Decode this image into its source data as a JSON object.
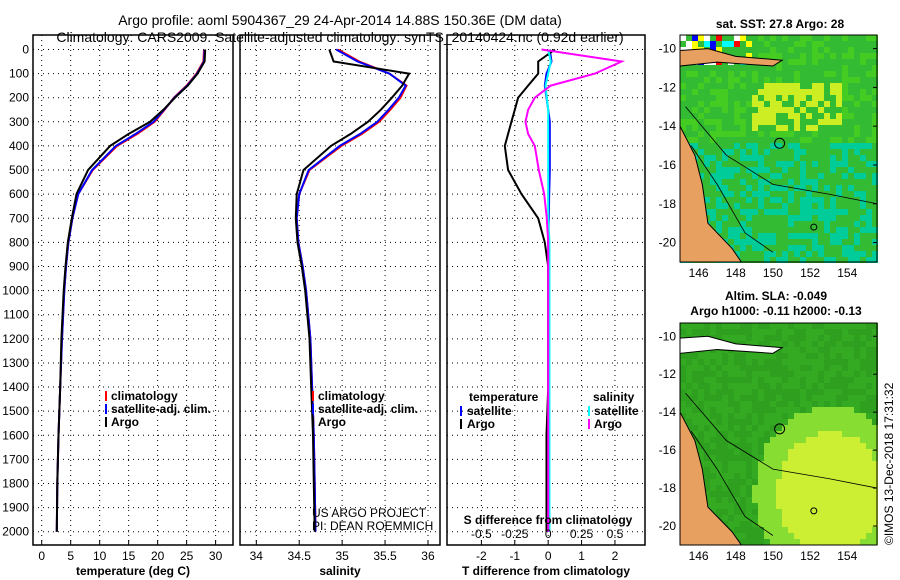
{
  "title_line1": "Argo profile: aoml 5904367_29 24-Apr-2014 14.88S 150.36E (DM data)",
  "title_line2": "Climatology: CARS2009. Satellite-adjusted climatology: synTS_20140424.nc (0.92d earlier)",
  "credit_line1": "US ARGO PROJECT",
  "credit_line2": "PI: DEAN ROEMMICH",
  "map1_title": "sat. SST: 27.8 Argo: 28",
  "map2_title1": "Altim. SLA: -0.049",
  "map2_title2": "Argo h1000: -0.11 h2000: -0.13",
  "copyright": "©IMOS 13-Dec-2018 17:31:32",
  "colors": {
    "climatology": "#ff0000",
    "satellite": "#0000ff",
    "argo": "#000000",
    "sal_sat": "#00ffff",
    "sal_argo": "#ff00ff"
  },
  "chart_data": [
    {
      "type": "line",
      "xlabel": "temperature (deg C)",
      "ylabel": "depth",
      "xlim": [
        -1.5,
        33
      ],
      "ylim": [
        2055,
        -60
      ],
      "xticks": [
        0,
        5,
        10,
        15,
        20,
        25,
        30
      ],
      "yticks": [
        0,
        100,
        200,
        300,
        400,
        500,
        600,
        700,
        800,
        900,
        1000,
        1100,
        1200,
        1300,
        1400,
        1500,
        1600,
        1700,
        1800,
        1900,
        2000
      ],
      "depth": [
        0,
        50,
        100,
        150,
        200,
        250,
        300,
        350,
        400,
        500,
        600,
        700,
        800,
        900,
        1000,
        1200,
        1400,
        1600,
        1800,
        2000
      ],
      "series": [
        {
          "name": "climatology",
          "color": "#ff0000",
          "values": [
            28.0,
            27.9,
            26.7,
            25.0,
            22.8,
            21.2,
            19.5,
            16.5,
            13.0,
            8.8,
            6.3,
            5.3,
            4.6,
            4.2,
            3.9,
            3.5,
            3.2,
            2.9,
            2.7,
            2.6
          ]
        },
        {
          "name": "satellite-adj. clim.",
          "color": "#0000ff",
          "values": [
            28.1,
            28.0,
            26.8,
            25.1,
            22.9,
            21.1,
            19.3,
            16.2,
            12.8,
            8.7,
            6.3,
            5.3,
            4.6,
            4.2,
            3.9,
            3.5,
            3.2,
            2.9,
            2.7,
            2.6
          ]
        },
        {
          "name": "Argo",
          "color": "#000000",
          "values": [
            28.2,
            28.1,
            26.9,
            25.2,
            23.0,
            21.0,
            18.7,
            15.0,
            11.8,
            8.0,
            6.0,
            5.2,
            4.5,
            4.1,
            3.8,
            3.4,
            3.2,
            2.9,
            2.7,
            2.6
          ]
        }
      ],
      "legend": [
        "climatology",
        "satellite-adj. clim.",
        "Argo"
      ],
      "legend_position": "bottom-right"
    },
    {
      "type": "line",
      "xlabel": "salinity",
      "xlim": [
        33.81,
        36.14
      ],
      "ylim": [
        2055,
        -60
      ],
      "xticks": [
        34,
        34.5,
        35,
        35.5,
        36
      ],
      "depth": [
        0,
        50,
        100,
        150,
        200,
        250,
        300,
        350,
        400,
        500,
        600,
        700,
        800,
        900,
        1000,
        1200,
        1400,
        1600,
        1800,
        2000
      ],
      "series": [
        {
          "name": "climatology",
          "color": "#ff0000",
          "values": [
            34.95,
            35.2,
            35.55,
            35.75,
            35.68,
            35.56,
            35.43,
            35.23,
            34.99,
            34.62,
            34.5,
            34.47,
            34.49,
            34.54,
            34.58,
            34.63,
            34.65,
            34.67,
            34.68,
            34.69
          ]
        },
        {
          "name": "satellite-adj. clim.",
          "color": "#0000ff",
          "values": [
            34.93,
            35.18,
            35.55,
            35.74,
            35.66,
            35.54,
            35.41,
            35.21,
            34.97,
            34.61,
            34.5,
            34.47,
            34.49,
            34.54,
            34.58,
            34.63,
            34.65,
            34.67,
            34.68,
            34.69
          ]
        },
        {
          "name": "Argo",
          "color": "#000000",
          "values": [
            34.85,
            34.9,
            35.78,
            35.7,
            35.58,
            35.45,
            35.3,
            35.1,
            34.87,
            34.55,
            34.47,
            34.46,
            34.48,
            34.53,
            34.57,
            34.62,
            34.64,
            34.66,
            34.67,
            34.68
          ]
        }
      ],
      "legend": [
        "climatology",
        "satellite-adj. clim.",
        "Argo"
      ],
      "legend_position": "bottom-right"
    },
    {
      "type": "line",
      "xlabel": "T difference from climatology",
      "xlabel2": "S difference from climatology",
      "xlim": [
        -3.03,
        2.9
      ],
      "xticks": [
        -2,
        -1,
        0,
        1,
        2
      ],
      "s_xticks": [
        "-0.5",
        "-0.25",
        "0",
        "0.25",
        "0.5"
      ],
      "s_xtick_values": [
        -0.5,
        -0.25,
        0,
        0.25,
        0.5
      ],
      "ylim": [
        2055,
        -60
      ],
      "depth": [
        0,
        50,
        100,
        150,
        200,
        250,
        300,
        350,
        400,
        500,
        600,
        700,
        800,
        900,
        1000,
        1200,
        1400,
        1600,
        1800,
        2000
      ],
      "series": [
        {
          "name": "temperature satellite",
          "color": "#0000ff",
          "values": [
            0.05,
            0.1,
            -0.05,
            -0.1,
            -0.05,
            0.0,
            0.05,
            0.05,
            0.05,
            0.05,
            0.03,
            0.02,
            0.0,
            0.0,
            0.0,
            0.0,
            0.0,
            0.0,
            0.0,
            0.0
          ]
        },
        {
          "name": "temperature Argo",
          "color": "#000000",
          "values": [
            0.2,
            -0.3,
            -0.3,
            -0.6,
            -0.9,
            -1.0,
            -1.1,
            -1.2,
            -1.3,
            -1.2,
            -0.8,
            -0.3,
            -0.1,
            0.0,
            0.0,
            0.0,
            0.0,
            -0.05,
            -0.05,
            -0.05
          ]
        },
        {
          "name": "salinity satellite",
          "color": "#00ffff",
          "values": [
            0.0,
            0.02,
            0.0,
            -0.02,
            -0.01,
            0.0,
            0.0,
            0.0,
            0.0,
            0.0,
            0.0,
            0.0,
            0.01,
            0.01,
            0.01,
            0.01,
            0.01,
            0.01,
            0.01,
            0.01
          ]
        },
        {
          "name": "salinity Argo",
          "color": "#ff00ff",
          "values": [
            -0.05,
            0.55,
            0.35,
            0.02,
            -0.1,
            -0.15,
            -0.17,
            -0.15,
            -0.1,
            -0.07,
            -0.03,
            -0.01,
            0.0,
            0.0,
            0.0,
            0.0,
            0.0,
            0.0,
            0.0,
            0.0
          ]
        }
      ],
      "legend_temperature_title": "temperature",
      "legend_salinity_title": "salinity",
      "legend_temperature": [
        "satellite",
        "Argo"
      ],
      "legend_salinity": [
        "satellite",
        "Argo"
      ]
    },
    {
      "type": "heatmap",
      "title": "sat. SST: 27.8 Argo: 28",
      "xlim": [
        145,
        155.6
      ],
      "ylim": [
        -21,
        -9.3
      ],
      "xticks": [
        146,
        148,
        150,
        152,
        154
      ],
      "yticks": [
        -10,
        -12,
        -14,
        -16,
        -18,
        -20
      ],
      "argo_position": [
        150.36,
        -14.88
      ]
    },
    {
      "type": "heatmap",
      "title": "Altim. SLA: -0.049",
      "xlim": [
        145,
        155.6
      ],
      "ylim": [
        -21,
        -9.3
      ],
      "xticks": [
        146,
        148,
        150,
        152,
        154
      ],
      "yticks": [
        -10,
        -12,
        -14,
        -16,
        -18,
        -20
      ],
      "argo_position": [
        150.36,
        -14.88
      ]
    }
  ]
}
